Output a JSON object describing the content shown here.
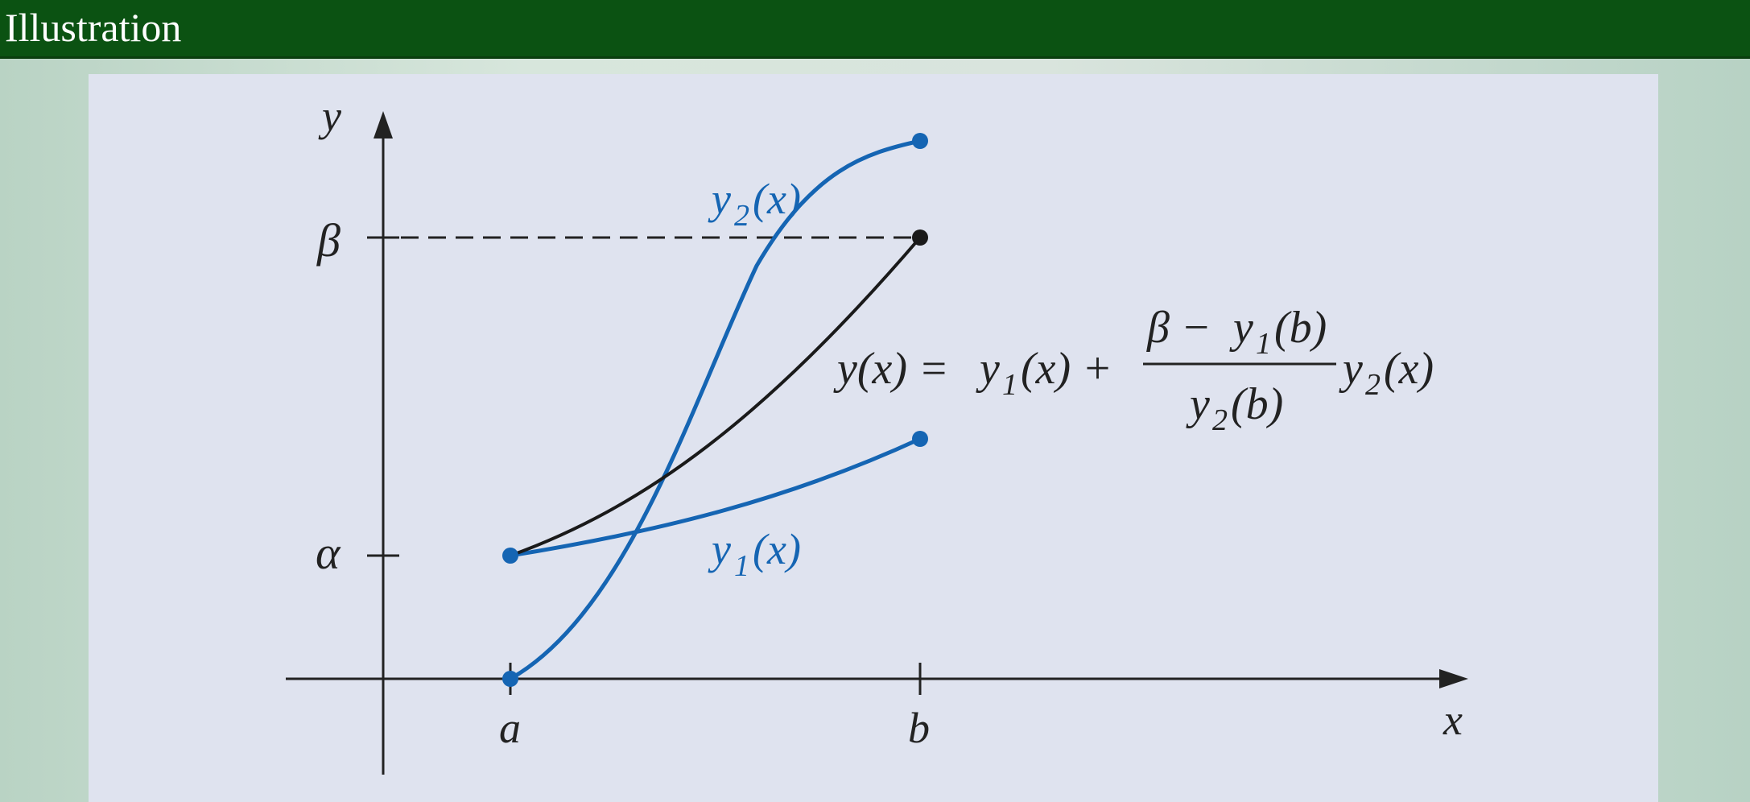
{
  "header": {
    "title": "Illustration"
  },
  "figure": {
    "axis_labels": {
      "y": "y",
      "x": "x"
    },
    "tick_labels": {
      "beta": "β",
      "alpha": "α",
      "a": "a",
      "b": "b"
    },
    "curve_labels": {
      "y2": {
        "base": "y",
        "sub": "2",
        "arg": "(x)"
      },
      "y1": {
        "base": "y",
        "sub": "1",
        "arg": "(x)"
      }
    },
    "formula": {
      "lhs": "y(x) = ",
      "term1_base": "y",
      "term1_sub": "1",
      "term1_arg": "(x) +",
      "numerator_beta": "β −",
      "numerator_base": "y",
      "numerator_sub": "1",
      "numerator_arg": "(b)",
      "denominator_base": "y",
      "denominator_sub": "2",
      "denominator_arg": "(b)",
      "tail_base": "y",
      "tail_sub": "2",
      "tail_arg": "(x)"
    },
    "colors": {
      "blue": "#1565b3",
      "black": "#1a1a1a",
      "axis": "#222222"
    }
  }
}
